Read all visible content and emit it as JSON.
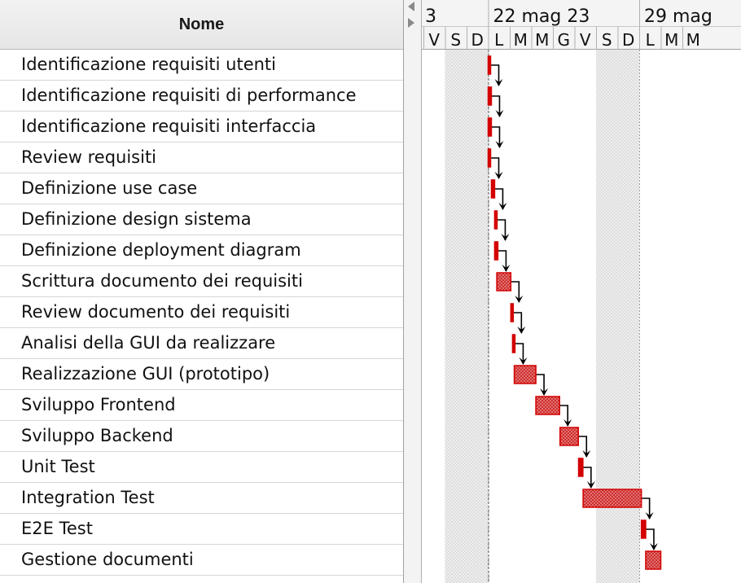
{
  "table": {
    "header": "Nome",
    "tasks": [
      "Identificazione requisiti utenti",
      "Identificazione requisiti di performance",
      "Identificazione requisiti interfaccia",
      "Review requisiti",
      "Definizione use case",
      "Definizione design sistema",
      "Definizione deployment diagram",
      "Scrittura documento dei requisiti",
      "Review documento dei requisiti",
      "Analisi della GUI da realizzare",
      "Realizzazione GUI (prototipo)",
      "Sviluppo Frontend",
      "Sviluppo Backend",
      "Unit Test",
      "Integration Test",
      "E2E Test",
      "Gestione documenti"
    ]
  },
  "timeline": {
    "week_labels": [
      "3",
      "22 mag 23",
      "29 mag"
    ],
    "day_labels": [
      "V",
      "S",
      "D",
      "L",
      "M",
      "M",
      "G",
      "V",
      "S",
      "D",
      "L",
      "M",
      "M"
    ],
    "weekend_day_indices": [
      1,
      2,
      8,
      9
    ],
    "today_day_index": 3
  },
  "colors": {
    "bar_fill": "#e05a5a",
    "bar_border": "#d40000",
    "arrow": "#000000",
    "weekend_shade": "#e6e6e6"
  },
  "bars": [
    {
      "start_day": 3.0,
      "duration_days": 0.08
    },
    {
      "start_day": 3.0,
      "duration_days": 0.15
    },
    {
      "start_day": 3.0,
      "duration_days": 0.15
    },
    {
      "start_day": 3.0,
      "duration_days": 0.08
    },
    {
      "start_day": 3.15,
      "duration_days": 0.15
    },
    {
      "start_day": 3.3,
      "duration_days": 0.08
    },
    {
      "start_day": 3.3,
      "duration_days": 0.15
    },
    {
      "start_day": 3.4,
      "duration_days": 0.65
    },
    {
      "start_day": 4.05,
      "duration_days": 0.08
    },
    {
      "start_day": 4.13,
      "duration_days": 0.08
    },
    {
      "start_day": 4.21,
      "duration_days": 1.0
    },
    {
      "start_day": 5.21,
      "duration_days": 1.1
    },
    {
      "start_day": 6.33,
      "duration_days": 0.85
    },
    {
      "start_day": 7.19,
      "duration_days": 0.2
    },
    {
      "start_day": 7.4,
      "duration_days": 2.7
    },
    {
      "start_day": 10.1,
      "duration_days": 0.2
    },
    {
      "start_day": 10.3,
      "duration_days": 0.7
    }
  ]
}
